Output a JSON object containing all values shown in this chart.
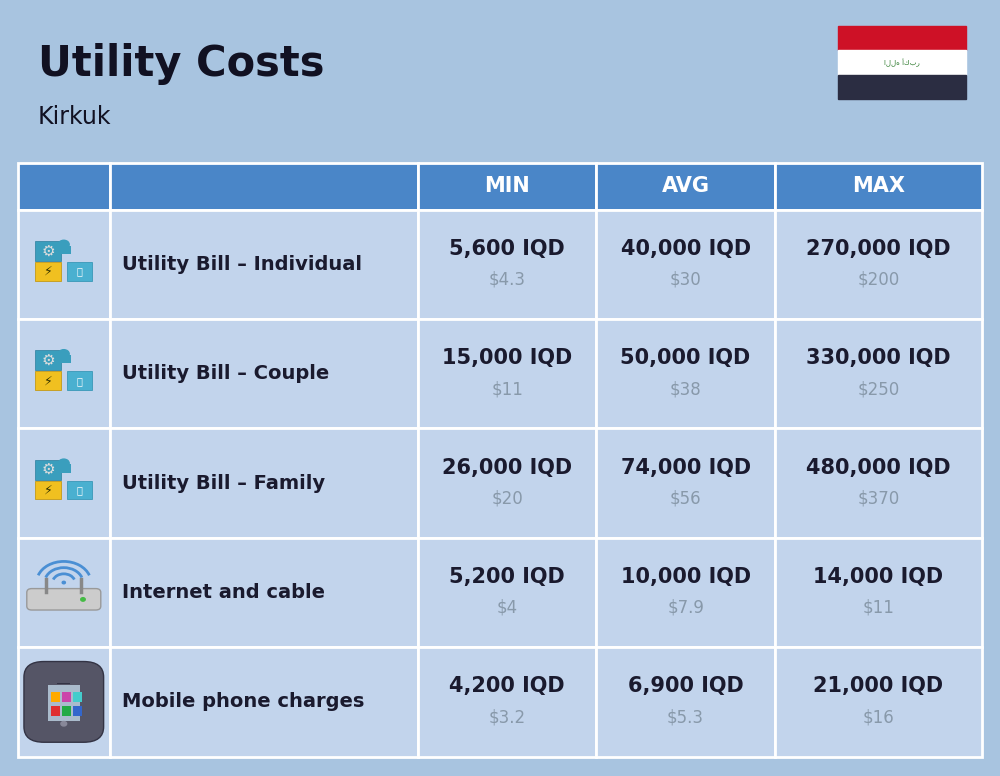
{
  "title": "Utility Costs",
  "subtitle": "Kirkuk",
  "background_color": "#a8c4e0",
  "header_bg_color": "#4a86c8",
  "header_text_color": "#ffffff",
  "row_bg_color": "#c2d4ec",
  "divider_color": "#ffffff",
  "header_labels": [
    "",
    "",
    "MIN",
    "AVG",
    "MAX"
  ],
  "rows": [
    {
      "label": "Utility Bill – Individual",
      "min_iqd": "5,600 IQD",
      "min_usd": "$4.3",
      "avg_iqd": "40,000 IQD",
      "avg_usd": "$30",
      "max_iqd": "270,000 IQD",
      "max_usd": "$200"
    },
    {
      "label": "Utility Bill – Couple",
      "min_iqd": "15,000 IQD",
      "min_usd": "$11",
      "avg_iqd": "50,000 IQD",
      "avg_usd": "$38",
      "max_iqd": "330,000 IQD",
      "max_usd": "$250"
    },
    {
      "label": "Utility Bill – Family",
      "min_iqd": "26,000 IQD",
      "min_usd": "$20",
      "avg_iqd": "74,000 IQD",
      "avg_usd": "$56",
      "max_iqd": "480,000 IQD",
      "max_usd": "$370"
    },
    {
      "label": "Internet and cable",
      "min_iqd": "5,200 IQD",
      "min_usd": "$4",
      "avg_iqd": "10,000 IQD",
      "avg_usd": "$7.9",
      "max_iqd": "14,000 IQD",
      "max_usd": "$11"
    },
    {
      "label": "Mobile phone charges",
      "min_iqd": "4,200 IQD",
      "min_usd": "$3.2",
      "avg_iqd": "6,900 IQD",
      "avg_usd": "$5.3",
      "max_iqd": "21,000 IQD",
      "max_usd": "$16"
    }
  ],
  "title_fontsize": 30,
  "subtitle_fontsize": 17,
  "header_fontsize": 15,
  "label_fontsize": 14,
  "value_fontsize": 15,
  "subvalue_fontsize": 12,
  "iqd_color": "#1a1a2e",
  "usd_color": "#8899aa",
  "label_color": "#1a1a2e"
}
